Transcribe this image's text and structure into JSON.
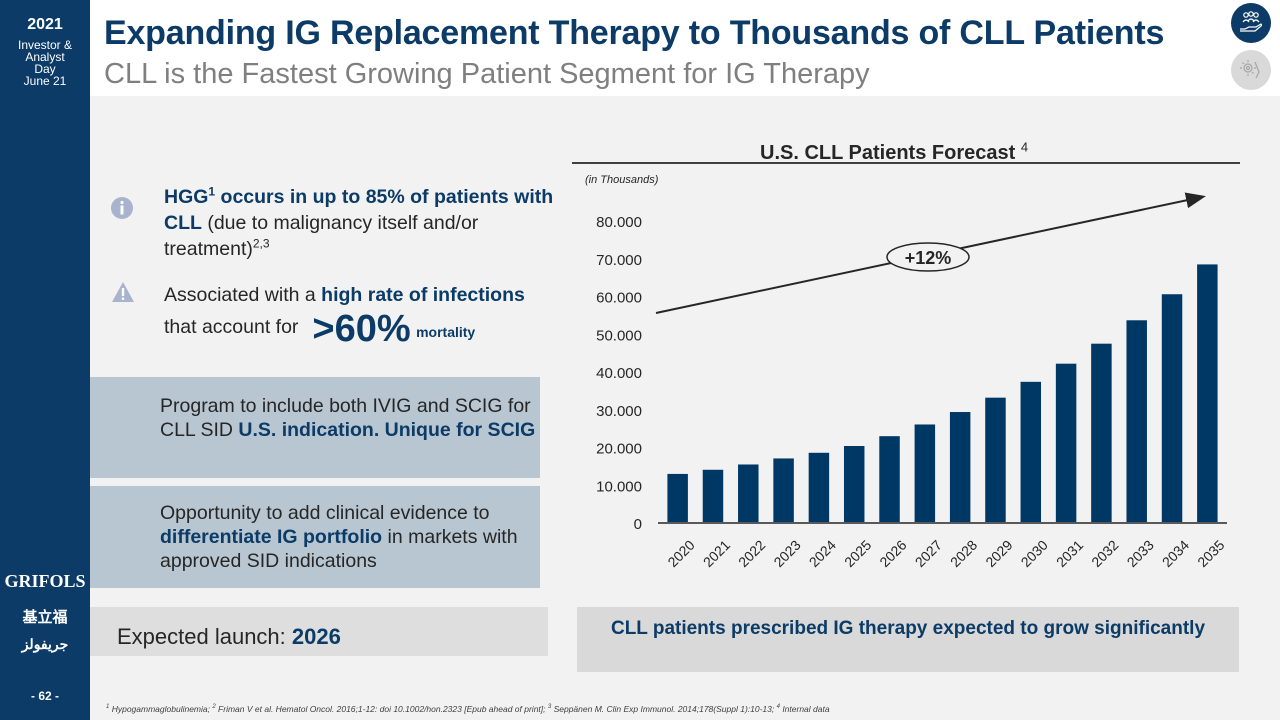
{
  "sidebar": {
    "year": "2021",
    "event_lines": [
      "Investor &",
      "Analyst",
      "Day",
      "June 21"
    ],
    "brand": "GRIFOLS",
    "brand_chinese": "基立福",
    "brand_arabic": "جريفولز",
    "page_number": "- 62 -"
  },
  "header": {
    "title": "Expanding IG Replacement Therapy to Thousands of CLL Patients",
    "subtitle": "CLL is the Fastest Growing Patient Segment for IG Therapy",
    "icons": [
      "people-hand-icon",
      "gear-hand-icon"
    ]
  },
  "bullets": [
    {
      "icon": "info-icon",
      "bold_1": "HGG",
      "sup_1": "1",
      "bold_2": " occurs in up to 85% of patients with CLL",
      "text": " (due to malignancy itself and/or treatment)",
      "sup_2": "2,3"
    },
    {
      "icon": "warning-icon",
      "text_1": "Associated with a ",
      "bold_1": "high rate of infections",
      "text_2": " that account for",
      "big_stat": ">60%",
      "stat_label": "mortality"
    }
  ],
  "panels": [
    {
      "text_1": "Program to include both IVIG and SCIG for CLL SID ",
      "bold_1": "U.S. indication. Unique for SCIG"
    },
    {
      "text_1": "Opportunity to add clinical evidence to ",
      "bold_1": "differentiate IG portfolio",
      "text_2": " in markets with approved SID indications"
    }
  ],
  "launch": {
    "label": "Expected launch: ",
    "value": "2026"
  },
  "callout": "CLL patients prescribed IG therapy expected to grow significantly",
  "footnote": {
    "parts": [
      {
        "sup": "1",
        "text": " Hypogammaglobulinemia; "
      },
      {
        "sup": "2",
        "text": " Friman V et al. Hematol Oncol. 2016;1-12: doi 10.1002/hon.2323 [Epub ahead of print]; "
      },
      {
        "sup": "3",
        "text": " Seppänen M. Clin Exp Immunol. 2014;178(Suppl 1):10-13; "
      },
      {
        "sup": "4",
        "text": " Internal data"
      }
    ]
  },
  "colors": {
    "brand_navy": "#0b3b66",
    "bar": "#003865",
    "panel": "#b8c6d1",
    "background": "#f2f2f2"
  },
  "chart_data": {
    "type": "bar",
    "title": "U.S. CLL Patients Forecast",
    "title_sup": "4",
    "unit_label": "(in Thousands)",
    "xlabel": "",
    "ylabel": "",
    "categories": [
      "2020",
      "2021",
      "2022",
      "2023",
      "2024",
      "2025",
      "2026",
      "2027",
      "2028",
      "2029",
      "2030",
      "2031",
      "2032",
      "2033",
      "2034",
      "2035"
    ],
    "values": [
      13.0,
      14.1,
      15.5,
      17.1,
      18.6,
      20.4,
      23.0,
      26.1,
      29.4,
      33.2,
      37.4,
      42.2,
      47.5,
      53.7,
      60.6,
      68.5
    ],
    "ylim": [
      0,
      80
    ],
    "yticks": [
      0,
      10,
      20,
      30,
      40,
      50,
      60,
      70,
      80
    ],
    "ytick_labels": [
      "0",
      "10.000",
      "20.000",
      "30.000",
      "40.000",
      "50.000",
      "60.000",
      "70.000",
      "80.000"
    ],
    "grid": false,
    "legend": "none",
    "annotation": {
      "text": "+12%",
      "type": "trend-arrow",
      "meaning": "growth rate"
    }
  }
}
